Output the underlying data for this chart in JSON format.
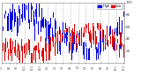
{
  "background_color": "#ffffff",
  "plot_bg_color": "#ffffff",
  "grid_color": "#b0b0b0",
  "ylim": [
    0,
    100
  ],
  "yticks": [
    20,
    40,
    60,
    80,
    100
  ],
  "ytick_labels": [
    "20",
    "40",
    "60",
    "80",
    "100"
  ],
  "n_points": 365,
  "bar_width": 0.7,
  "blue_color": "#0000dd",
  "red_color": "#dd0000",
  "legend_blue_label": "High",
  "legend_red_label": "Low",
  "n_gridlines": 17,
  "seed": 42,
  "figwidth": 1.6,
  "figheight": 0.87,
  "dpi": 100
}
